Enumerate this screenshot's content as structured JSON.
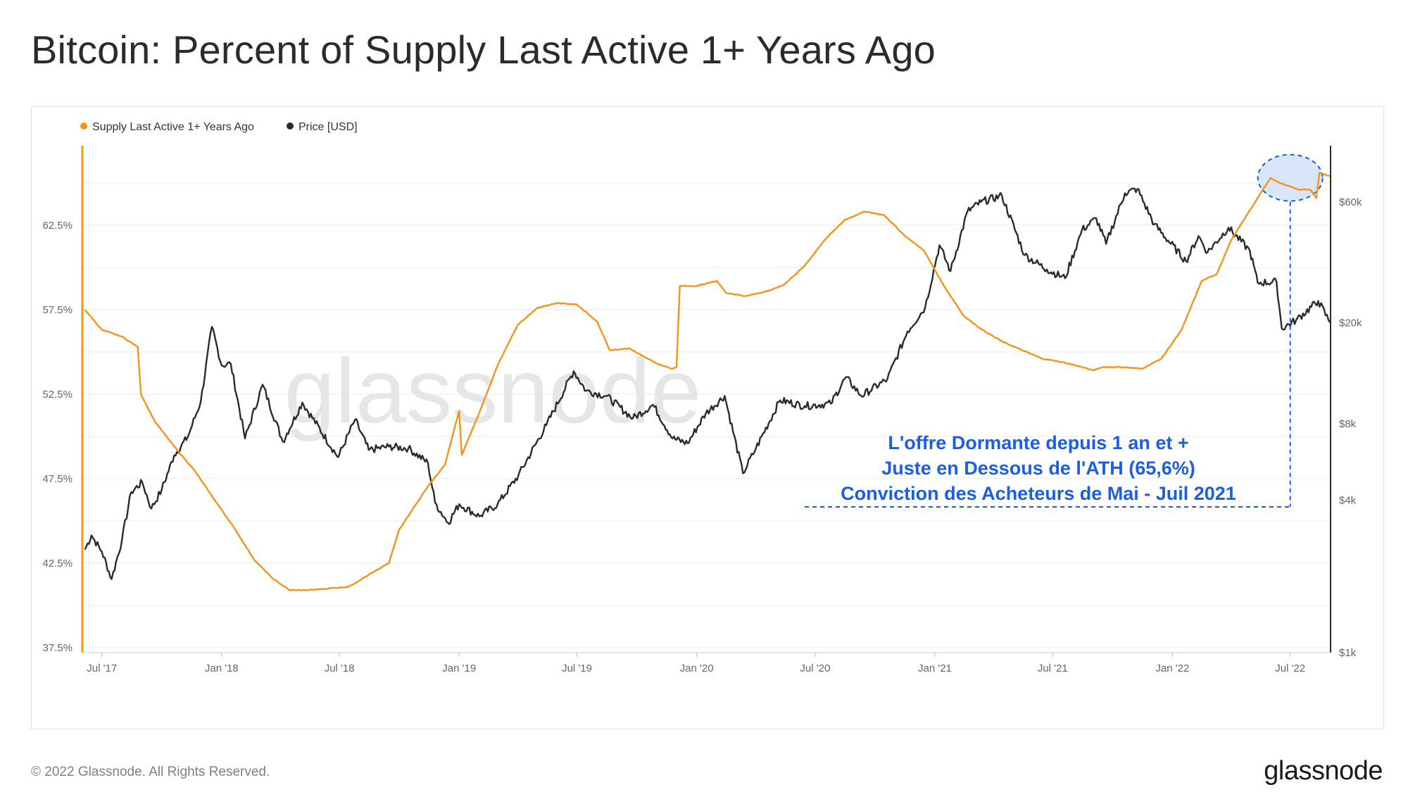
{
  "page": {
    "title": "Bitcoin: Percent of Supply Last Active 1+ Years Ago",
    "footer_copyright": "© 2022 Glassnode. All Rights Reserved.",
    "footer_logo": "glassnode",
    "watermark": "glassnode"
  },
  "colors": {
    "supply": "#f7931a",
    "price": "#2b2b2b",
    "annotation": "#1a5ee8",
    "highlight_fill": "#cfe0f7",
    "grid": "#ebebeb"
  },
  "chart_data": {
    "type": "line",
    "legend": {
      "placement": "top-left",
      "entries": [
        "Supply Last Active 1+ Years Ago",
        "Price [USD]"
      ]
    },
    "x_ticks": [
      "Jul '17",
      "Jan '18",
      "Jul '18",
      "Jan '19",
      "Jul '19",
      "Jan '20",
      "Jul '20",
      "Jan '21",
      "Jul '21",
      "Jan '22",
      "Jul '22"
    ],
    "left_axis": {
      "ticks": [
        "37.5%",
        "42.5%",
        "47.5%",
        "52.5%",
        "57.5%",
        "62.5%"
      ],
      "tick_values": [
        37.5,
        42.5,
        47.5,
        52.5,
        57.5,
        62.5
      ],
      "range": [
        37.2,
        67.2
      ]
    },
    "right_axis": {
      "scale": "log",
      "ticks": [
        "$1k",
        "$4k",
        "$8k",
        "$20k",
        "$60k"
      ],
      "tick_values": [
        1000,
        4000,
        8000,
        20000,
        60000
      ],
      "range": [
        1000,
        100000
      ]
    },
    "grid": true,
    "series": [
      {
        "name": "Supply Last Active 1+ Years Ago",
        "axis": "left",
        "points": [
          [
            "2017-06-05",
            57.5
          ],
          [
            "2017-07-01",
            56.3
          ],
          [
            "2017-08-01",
            55.9
          ],
          [
            "2017-08-25",
            55.3
          ],
          [
            "2017-08-30",
            52.5
          ],
          [
            "2017-09-20",
            50.9
          ],
          [
            "2017-10-20",
            49.4
          ],
          [
            "2017-11-20",
            48.0
          ],
          [
            "2017-12-20",
            46.3
          ],
          [
            "2018-01-20",
            44.6
          ],
          [
            "2018-02-20",
            42.7
          ],
          [
            "2018-03-20",
            41.6
          ],
          [
            "2018-04-15",
            40.9
          ],
          [
            "2018-05-15",
            40.9
          ],
          [
            "2018-06-15",
            41.0
          ],
          [
            "2018-07-15",
            41.1
          ],
          [
            "2018-08-15",
            41.8
          ],
          [
            "2018-09-15",
            42.5
          ],
          [
            "2018-10-01",
            44.5
          ],
          [
            "2018-10-20",
            45.6
          ],
          [
            "2018-11-15",
            47.1
          ],
          [
            "2018-12-10",
            48.3
          ],
          [
            "2018-12-25",
            50.5
          ],
          [
            "2019-01-01",
            51.5
          ],
          [
            "2019-01-05",
            48.9
          ],
          [
            "2019-02-01",
            51.4
          ],
          [
            "2019-03-01",
            54.2
          ],
          [
            "2019-04-01",
            56.6
          ],
          [
            "2019-05-01",
            57.6
          ],
          [
            "2019-06-01",
            57.9
          ],
          [
            "2019-07-01",
            57.8
          ],
          [
            "2019-08-01",
            56.8
          ],
          [
            "2019-08-20",
            55.1
          ],
          [
            "2019-09-20",
            55.2
          ],
          [
            "2019-11-01",
            54.3
          ],
          [
            "2019-11-25",
            54.0
          ],
          [
            "2019-12-01",
            54.1
          ],
          [
            "2019-12-06",
            58.9
          ],
          [
            "2020-01-01",
            58.9
          ],
          [
            "2020-02-01",
            59.2
          ],
          [
            "2020-02-15",
            58.5
          ],
          [
            "2020-03-15",
            58.3
          ],
          [
            "2020-04-20",
            58.6
          ],
          [
            "2020-05-15",
            59.0
          ],
          [
            "2020-06-15",
            60.1
          ],
          [
            "2020-07-15",
            61.6
          ],
          [
            "2020-08-15",
            62.8
          ],
          [
            "2020-09-15",
            63.3
          ],
          [
            "2020-10-15",
            63.1
          ],
          [
            "2020-11-15",
            61.9
          ],
          [
            "2020-12-15",
            61.0
          ],
          [
            "2021-01-15",
            58.9
          ],
          [
            "2021-02-15",
            57.1
          ],
          [
            "2021-03-15",
            56.3
          ],
          [
            "2021-04-15",
            55.6
          ],
          [
            "2021-05-15",
            55.1
          ],
          [
            "2021-06-15",
            54.6
          ],
          [
            "2021-07-15",
            54.4
          ],
          [
            "2021-08-15",
            54.1
          ],
          [
            "2021-09-01",
            53.9
          ],
          [
            "2021-09-15",
            54.1
          ],
          [
            "2021-10-15",
            54.1
          ],
          [
            "2021-11-15",
            54.0
          ],
          [
            "2021-12-15",
            54.6
          ],
          [
            "2022-01-15",
            56.3
          ],
          [
            "2022-02-15",
            59.2
          ],
          [
            "2022-03-10",
            59.6
          ],
          [
            "2022-04-01",
            61.6
          ],
          [
            "2022-05-15",
            64.3
          ],
          [
            "2022-06-01",
            65.3
          ],
          [
            "2022-06-15",
            65.0
          ],
          [
            "2022-07-15",
            64.6
          ],
          [
            "2022-08-01",
            64.6
          ],
          [
            "2022-08-10",
            64.1
          ],
          [
            "2022-08-15",
            65.6
          ],
          [
            "2022-08-31",
            65.4
          ]
        ]
      },
      {
        "name": "Price [USD]",
        "axis": "right",
        "points": [
          [
            "2017-06-05",
            2550
          ],
          [
            "2017-06-15",
            2900
          ],
          [
            "2017-07-01",
            2500
          ],
          [
            "2017-07-16",
            1950
          ],
          [
            "2017-08-01",
            2800
          ],
          [
            "2017-08-15",
            4300
          ],
          [
            "2017-09-01",
            4700
          ],
          [
            "2017-09-15",
            3700
          ],
          [
            "2017-10-01",
            4400
          ],
          [
            "2017-10-20",
            6000
          ],
          [
            "2017-11-10",
            7100
          ],
          [
            "2017-11-30",
            9800
          ],
          [
            "2017-12-17",
            19300
          ],
          [
            "2018-01-01",
            13600
          ],
          [
            "2018-01-15",
            13800
          ],
          [
            "2018-02-06",
            7000
          ],
          [
            "2018-03-05",
            11400
          ],
          [
            "2018-04-05",
            6800
          ],
          [
            "2018-05-05",
            9700
          ],
          [
            "2018-06-29",
            5900
          ],
          [
            "2018-07-25",
            8300
          ],
          [
            "2018-08-15",
            6300
          ],
          [
            "2018-09-15",
            6500
          ],
          [
            "2018-10-15",
            6400
          ],
          [
            "2018-11-14",
            5600
          ],
          [
            "2018-11-25",
            3900
          ],
          [
            "2018-12-15",
            3250
          ],
          [
            "2019-01-01",
            3850
          ],
          [
            "2019-02-01",
            3450
          ],
          [
            "2019-03-01",
            3850
          ],
          [
            "2019-04-02",
            5000
          ],
          [
            "2019-05-15",
            7900
          ],
          [
            "2019-06-26",
            12900
          ],
          [
            "2019-07-15",
            10800
          ],
          [
            "2019-08-15",
            10300
          ],
          [
            "2019-09-25",
            8400
          ],
          [
            "2019-10-26",
            9500
          ],
          [
            "2019-11-25",
            7000
          ],
          [
            "2019-12-18",
            6700
          ],
          [
            "2020-01-15",
            8800
          ],
          [
            "2020-02-13",
            10300
          ],
          [
            "2020-03-12",
            5100
          ],
          [
            "2020-04-01",
            6400
          ],
          [
            "2020-05-08",
            9900
          ],
          [
            "2020-06-15",
            9400
          ],
          [
            "2020-07-25",
            9600
          ],
          [
            "2020-08-17",
            12200
          ],
          [
            "2020-09-10",
            10300
          ],
          [
            "2020-10-20",
            12000
          ],
          [
            "2020-11-20",
            18500
          ],
          [
            "2020-12-17",
            23000
          ],
          [
            "2021-01-08",
            40500
          ],
          [
            "2021-01-25",
            32000
          ],
          [
            "2021-02-20",
            55000
          ],
          [
            "2021-03-13",
            60000
          ],
          [
            "2021-04-14",
            63500
          ],
          [
            "2021-05-19",
            37000
          ],
          [
            "2021-06-22",
            32500
          ],
          [
            "2021-07-20",
            30000
          ],
          [
            "2021-08-15",
            46500
          ],
          [
            "2021-09-06",
            51700
          ],
          [
            "2021-09-21",
            41000
          ],
          [
            "2021-10-20",
            65000
          ],
          [
            "2021-11-08",
            67500
          ],
          [
            "2021-12-04",
            49000
          ],
          [
            "2022-01-22",
            35000
          ],
          [
            "2022-02-10",
            44000
          ],
          [
            "2022-02-24",
            38000
          ],
          [
            "2022-03-28",
            47500
          ],
          [
            "2022-04-30",
            38500
          ],
          [
            "2022-05-12",
            28800
          ],
          [
            "2022-06-10",
            29000
          ],
          [
            "2022-06-18",
            19000
          ],
          [
            "2022-07-10",
            20500
          ],
          [
            "2022-08-13",
            24400
          ],
          [
            "2022-08-31",
            20100
          ]
        ]
      }
    ]
  },
  "annotation": {
    "lines": [
      "L'offre Dormante depuis 1 an et +",
      "Juste en Dessous de l'ATH (65,6%)",
      "Conviction des Acheteurs de Mai - Juil 2021"
    ]
  }
}
